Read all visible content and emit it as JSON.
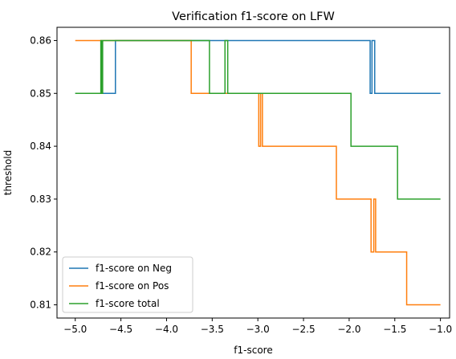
{
  "chart_data": {
    "type": "line",
    "title": "Verification f1-score on LFW",
    "xlabel": "f1-score",
    "ylabel": "threshold",
    "xlim": [
      -5.2,
      -0.9
    ],
    "ylim": [
      0.8075,
      0.8625
    ],
    "xticks": [
      -5.0,
      -4.5,
      -4.0,
      -3.5,
      -3.0,
      -2.5,
      -2.0,
      -1.5,
      -1.0
    ],
    "xtick_labels": [
      "−5.0",
      "−4.5",
      "−4.0",
      "−3.5",
      "−3.0",
      "−2.5",
      "−2.0",
      "−1.5",
      "−1.0"
    ],
    "yticks": [
      0.81,
      0.82,
      0.83,
      0.84,
      0.85,
      0.86
    ],
    "ytick_labels": [
      "0.81",
      "0.82",
      "0.83",
      "0.84",
      "0.85",
      "0.86"
    ],
    "grid": false,
    "legend_position": "lower-left",
    "series": [
      {
        "name": "f1-score on Neg",
        "color": "#1f77b4",
        "x": [
          -5.0,
          -4.56,
          -4.56,
          -1.77,
          -1.77,
          -1.75,
          -1.75,
          -1.72,
          -1.72,
          -1.69,
          -1.69,
          -1.0
        ],
        "y": [
          0.85,
          0.85,
          0.86,
          0.86,
          0.85,
          0.85,
          0.86,
          0.86,
          0.85,
          0.85,
          0.85,
          0.85
        ]
      },
      {
        "name": "f1-score on Pos",
        "color": "#ff7f0e",
        "x": [
          -5.0,
          -3.73,
          -3.73,
          -2.99,
          -2.99,
          -2.97,
          -2.97,
          -2.95,
          -2.95,
          -2.14,
          -2.14,
          -1.76,
          -1.76,
          -1.73,
          -1.73,
          -1.71,
          -1.71,
          -1.37,
          -1.37,
          -1.0
        ],
        "y": [
          0.86,
          0.86,
          0.85,
          0.85,
          0.84,
          0.84,
          0.85,
          0.85,
          0.84,
          0.84,
          0.83,
          0.83,
          0.82,
          0.82,
          0.83,
          0.83,
          0.82,
          0.82,
          0.81,
          0.81
        ]
      },
      {
        "name": "f1-score total",
        "color": "#2ca02c",
        "x": [
          -5.0,
          -4.72,
          -4.72,
          -4.71,
          -4.71,
          -4.7,
          -4.7,
          -4.69,
          -4.69,
          -3.53,
          -3.53,
          -3.36,
          -3.36,
          -3.33,
          -3.33,
          -3.31,
          -3.31,
          -1.98,
          -1.98,
          -1.47,
          -1.47,
          -1.0
        ],
        "y": [
          0.85,
          0.85,
          0.86,
          0.86,
          0.85,
          0.85,
          0.86,
          0.86,
          0.86,
          0.86,
          0.85,
          0.85,
          0.86,
          0.86,
          0.85,
          0.85,
          0.85,
          0.85,
          0.84,
          0.84,
          0.83,
          0.83
        ]
      }
    ]
  }
}
